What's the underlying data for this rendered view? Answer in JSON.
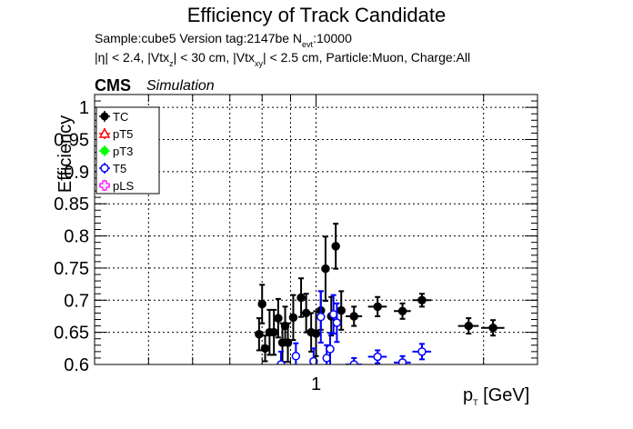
{
  "title": "Efficiency of Track Candidate",
  "info": {
    "line1_prefix": "Sample:cube5   Version tag:2147be  N",
    "line1_sub": "evt",
    "line1_suffix": ":10000",
    "line2_a": "|η| < 2.4, |Vtx",
    "line2_sub1": "z",
    "line2_b": "| < 30 cm, |Vtx",
    "line2_sub2": "xy",
    "line2_c": "| < 2.5 cm, Particle:Muon, Charge:All"
  },
  "cms": "CMS",
  "simulation": "Simulation",
  "chart_data": {
    "type": "scatter",
    "xlabel": "p",
    "xlabel_sub": "T",
    "xlabel_unit": " [GeV]",
    "ylabel": "Efficiency",
    "xscale": "log",
    "xlim": [
      0.4,
      2.5
    ],
    "ylim": [
      0.6,
      1.02
    ],
    "grid": true,
    "legend_position": "top-left",
    "y_ticks": [
      "0.6",
      "0.65",
      "0.7",
      "0.75",
      "0.8",
      "0.85",
      "0.9",
      "0.95",
      "1"
    ],
    "x_ticks": [
      "1"
    ],
    "legend": [
      {
        "name": "TC",
        "color": "#000000",
        "marker": "filled-circle"
      },
      {
        "name": "pT5",
        "color": "#ff0000",
        "marker": "open-triangle"
      },
      {
        "name": "pT3",
        "color": "#00ff00",
        "marker": "filled-circle"
      },
      {
        "name": "T5",
        "color": "#0000ff",
        "marker": "open-circle"
      },
      {
        "name": "pLS",
        "color": "#ff00ff",
        "marker": "open-cross"
      }
    ],
    "series": [
      {
        "name": "TC",
        "color": "#000000",
        "points": [
          {
            "x": 0.79,
            "y": 0.647,
            "xerr": 0.012,
            "yerr": 0.025
          },
          {
            "x": 0.8,
            "y": 0.694,
            "xerr": 0.012,
            "yerr": 0.03
          },
          {
            "x": 0.81,
            "y": 0.625,
            "xerr": 0.012,
            "yerr": 0.02
          },
          {
            "x": 0.825,
            "y": 0.65,
            "xerr": 0.012,
            "yerr": 0.035
          },
          {
            "x": 0.84,
            "y": 0.65,
            "xerr": 0.012,
            "yerr": 0.035
          },
          {
            "x": 0.855,
            "y": 0.672,
            "xerr": 0.012,
            "yerr": 0.03
          },
          {
            "x": 0.87,
            "y": 0.634,
            "xerr": 0.012,
            "yerr": 0.03
          },
          {
            "x": 0.88,
            "y": 0.66,
            "xerr": 0.012,
            "yerr": 0.03
          },
          {
            "x": 0.89,
            "y": 0.634,
            "xerr": 0.012,
            "yerr": 0.03
          },
          {
            "x": 0.91,
            "y": 0.673,
            "xerr": 0.012,
            "yerr": 0.035
          },
          {
            "x": 0.94,
            "y": 0.704,
            "xerr": 0.012,
            "yerr": 0.03
          },
          {
            "x": 0.96,
            "y": 0.68,
            "xerr": 0.012,
            "yerr": 0.03
          },
          {
            "x": 0.98,
            "y": 0.65,
            "xerr": 0.012,
            "yerr": 0.03
          },
          {
            "x": 1.0,
            "y": 0.648,
            "xerr": 0.012,
            "yerr": 0.035
          },
          {
            "x": 1.02,
            "y": 0.684,
            "xerr": 0.012,
            "yerr": 0.03
          },
          {
            "x": 1.04,
            "y": 0.749,
            "xerr": 0.012,
            "yerr": 0.05
          },
          {
            "x": 1.065,
            "y": 0.675,
            "xerr": 0.012,
            "yerr": 0.03
          },
          {
            "x": 1.085,
            "y": 0.784,
            "xerr": 0.012,
            "yerr": 0.035
          },
          {
            "x": 1.11,
            "y": 0.684,
            "xerr": 0.012,
            "yerr": 0.03
          },
          {
            "x": 1.17,
            "y": 0.675,
            "xerr": 0.04,
            "yerr": 0.015
          },
          {
            "x": 1.29,
            "y": 0.69,
            "xerr": 0.05,
            "yerr": 0.015
          },
          {
            "x": 1.43,
            "y": 0.683,
            "xerr": 0.05,
            "yerr": 0.012
          },
          {
            "x": 1.55,
            "y": 0.7,
            "xerr": 0.06,
            "yerr": 0.01
          },
          {
            "x": 1.88,
            "y": 0.66,
            "xerr": 0.08,
            "yerr": 0.012
          },
          {
            "x": 2.08,
            "y": 0.657,
            "xerr": 0.1,
            "yerr": 0.012
          }
        ]
      },
      {
        "name": "T5",
        "color": "#0000ff",
        "points": [
          {
            "x": 0.865,
            "y": 0.6,
            "xerr": 0.012,
            "yerr": 0.02
          },
          {
            "x": 0.92,
            "y": 0.613,
            "xerr": 0.012,
            "yerr": 0.02
          },
          {
            "x": 0.99,
            "y": 0.605,
            "xerr": 0.012,
            "yerr": 0.02
          },
          {
            "x": 1.02,
            "y": 0.674,
            "xerr": 0.012,
            "yerr": 0.04
          },
          {
            "x": 1.045,
            "y": 0.61,
            "xerr": 0.012,
            "yerr": 0.02
          },
          {
            "x": 1.06,
            "y": 0.624,
            "xerr": 0.012,
            "yerr": 0.025
          },
          {
            "x": 1.075,
            "y": 0.678,
            "xerr": 0.012,
            "yerr": 0.03
          },
          {
            "x": 1.09,
            "y": 0.665,
            "xerr": 0.012,
            "yerr": 0.03
          },
          {
            "x": 1.17,
            "y": 0.6,
            "xerr": 0.04,
            "yerr": 0.01
          },
          {
            "x": 1.29,
            "y": 0.612,
            "xerr": 0.05,
            "yerr": 0.01
          },
          {
            "x": 1.43,
            "y": 0.603,
            "xerr": 0.05,
            "yerr": 0.01
          },
          {
            "x": 1.55,
            "y": 0.62,
            "xerr": 0.06,
            "yerr": 0.012
          }
        ]
      }
    ]
  }
}
